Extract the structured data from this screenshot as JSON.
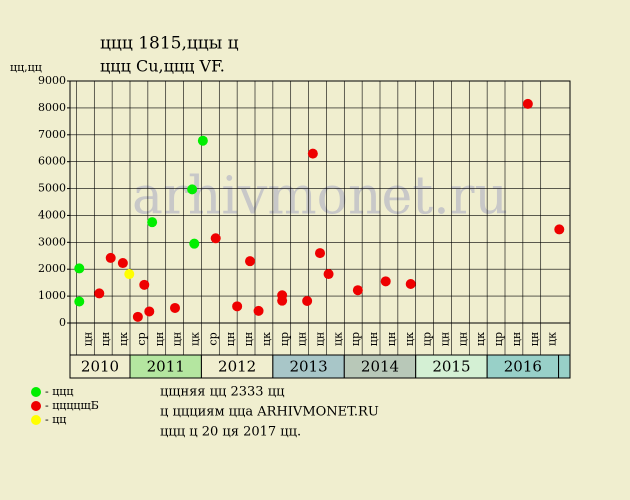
{
  "chart_data": {
    "type": "scatter",
    "title": "ццц 1815,ццы ц",
    "subtitle": "ццц Cu,ццц VF.",
    "y_label": "цц,цц",
    "watermark": "arhivmonet.ru",
    "xlim": [
      2010.16,
      2017.16
    ],
    "ylim": [
      0,
      9000
    ],
    "yticks": [
      0,
      1000,
      2000,
      3000,
      4000,
      5000,
      6000,
      7000,
      8000,
      9000
    ],
    "grid": true,
    "quarters": {
      "start": [
        2010.25,
        2010.5,
        2010.75,
        2011,
        2011.25,
        2011.5,
        2011.75,
        2012,
        2012.25,
        2012.5,
        2012.75,
        2013,
        2013.25,
        2013.5,
        2013.75,
        2014,
        2014.25,
        2014.5,
        2014.75,
        2015,
        2015.25,
        2015.5,
        2015.75,
        2016,
        2016.25,
        2016.5,
        2016.75
      ],
      "labels": [
        "цн",
        "цн",
        "цк",
        "ср",
        "цн",
        "цн",
        "цк",
        "ср",
        "цн",
        "цн",
        "цк",
        "цр",
        "цн",
        "цн",
        "цк",
        "цр",
        "цн",
        "цн",
        "цк",
        "цр",
        "цн",
        "цн",
        "цк",
        "цр",
        "цн",
        "цн",
        "цк"
      ]
    },
    "years": {
      "values": [
        2010,
        2011,
        2012,
        2013,
        2014,
        2015,
        2016,
        2017
      ],
      "labels": [
        "2010",
        "2011",
        "2012",
        "2013",
        "2014",
        "2015",
        "2016",
        null
      ],
      "colors": [
        "#f0eecf",
        "#b4e6a0",
        "#f0eecf",
        "#a8c6c8",
        "#b8c8b8",
        "#d4f0d4",
        "#98d0c8",
        "#98d0c8"
      ]
    },
    "series": [
      {
        "name": "- ццц",
        "color": "#00ee00",
        "x": [
          2010.29,
          2010.29,
          2011.31,
          2011.87,
          2011.9,
          2012.02
        ],
        "values": [
          2030,
          800,
          3750,
          4970,
          2950,
          6780
        ]
      },
      {
        "name": "- ццццщБ",
        "color": "#ee0000",
        "x": [
          2010.57,
          2010.73,
          2010.9,
          2011.11,
          2011.2,
          2011.27,
          2011.63,
          2012.2,
          2012.5,
          2012.68,
          2012.8,
          2013.13,
          2013.13,
          2013.48,
          2013.56,
          2013.66,
          2013.78,
          2014.19,
          2014.58,
          2014.93,
          2016.57,
          2017.01
        ],
        "values": [
          1100,
          2420,
          2230,
          230,
          1420,
          430,
          560,
          3150,
          620,
          2300,
          450,
          1030,
          830,
          820,
          6300,
          2600,
          1820,
          1220,
          1550,
          1450,
          8150,
          3480
        ]
      },
      {
        "name": "- цц",
        "color": "#ffff00",
        "x": [
          2010.99
        ],
        "values": [
          1820
        ]
      }
    ],
    "notes": [
      "цщняя цц 2333 цц",
      "ц ццциям цца ARHIVMONET.RU",
      "ццц ц 20 ця 2017 цц."
    ]
  }
}
